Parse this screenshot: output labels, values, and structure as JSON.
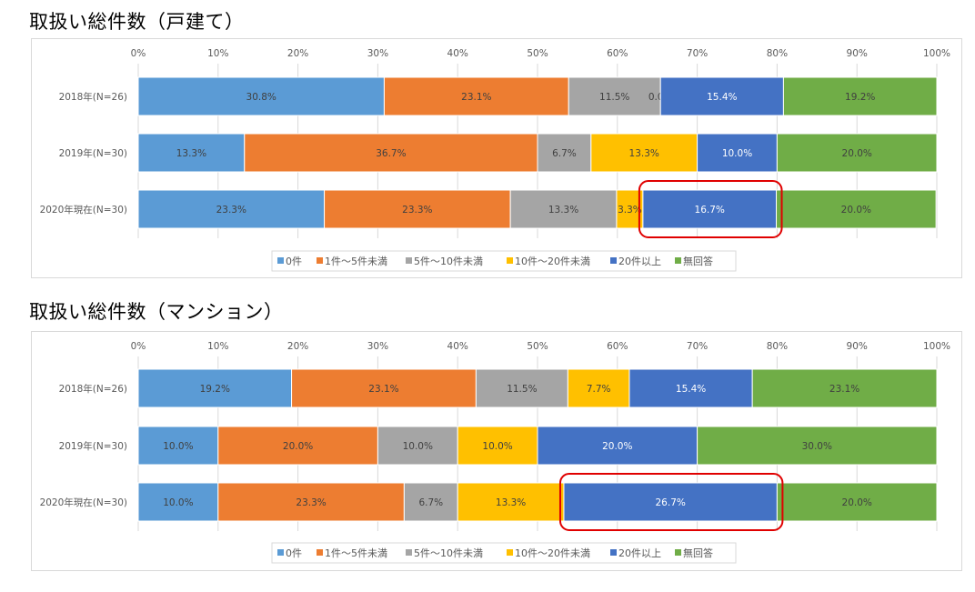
{
  "segment_label_colors": [
    "#404040",
    "#404040",
    "#404040",
    "#404040",
    "#ffffff",
    "#404040"
  ],
  "highlight": {
    "color": "#e00000"
  },
  "chart_data": [
    {
      "type": "bar",
      "orientation": "horizontal",
      "stacked": "percent",
      "title": "取扱い総件数（戸建て）",
      "categories": [
        "2018年(N=26)",
        "2019年(N=30)",
        "2020年現在(N=30)"
      ],
      "x_ticks": [
        "0%",
        "10%",
        "20%",
        "30%",
        "40%",
        "50%",
        "60%",
        "70%",
        "80%",
        "90%",
        "100%"
      ],
      "xlim": [
        0,
        100
      ],
      "legend_position": "bottom",
      "grid": true,
      "series": [
        {
          "name": "0件",
          "color": "#5b9bd5",
          "values": [
            30.8,
            13.3,
            23.3
          ],
          "labels": [
            "30.8%",
            "13.3%",
            "23.3%"
          ]
        },
        {
          "name": "1件～5件未満",
          "color": "#ed7d31",
          "values": [
            23.1,
            36.7,
            23.3
          ],
          "labels": [
            "23.1%",
            "36.7%",
            "23.3%"
          ]
        },
        {
          "name": "5件～10件未満",
          "color": "#a5a5a5",
          "values": [
            11.5,
            6.7,
            13.3
          ],
          "labels": [
            "11.5%",
            "6.7%",
            "13.3%"
          ]
        },
        {
          "name": "10件～20件未満",
          "color": "#ffc000",
          "values": [
            0.0,
            13.3,
            3.3
          ],
          "labels": [
            "0.0%",
            "13.3%",
            "3.3%"
          ]
        },
        {
          "name": "20件以上",
          "color": "#4472c4",
          "values": [
            15.4,
            10.0,
            16.7
          ],
          "labels": [
            "15.4%",
            "10.0%",
            "16.7%"
          ]
        },
        {
          "name": "無回答",
          "color": "#70ad47",
          "values": [
            19.2,
            20.0,
            20.0
          ],
          "labels": [
            "19.2%",
            "20.0%",
            "20.0%"
          ]
        }
      ],
      "highlight": {
        "category_index": 2,
        "series_index": 4
      }
    },
    {
      "type": "bar",
      "orientation": "horizontal",
      "stacked": "percent",
      "title": "取扱い総件数（マンション）",
      "categories": [
        "2018年(N=26)",
        "2019年(N=30)",
        "2020年現在(N=30)"
      ],
      "x_ticks": [
        "0%",
        "10%",
        "20%",
        "30%",
        "40%",
        "50%",
        "60%",
        "70%",
        "80%",
        "90%",
        "100%"
      ],
      "xlim": [
        0,
        100
      ],
      "legend_position": "bottom",
      "grid": true,
      "series": [
        {
          "name": "0件",
          "color": "#5b9bd5",
          "values": [
            19.2,
            10.0,
            10.0
          ],
          "labels": [
            "19.2%",
            "10.0%",
            "10.0%"
          ]
        },
        {
          "name": "1件～5件未満",
          "color": "#ed7d31",
          "values": [
            23.1,
            20.0,
            23.3
          ],
          "labels": [
            "23.1%",
            "20.0%",
            "23.3%"
          ]
        },
        {
          "name": "5件～10件未満",
          "color": "#a5a5a5",
          "values": [
            11.5,
            10.0,
            6.7
          ],
          "labels": [
            "11.5%",
            "10.0%",
            "6.7%"
          ]
        },
        {
          "name": "10件～20件未満",
          "color": "#ffc000",
          "values": [
            7.7,
            10.0,
            13.3
          ],
          "labels": [
            "7.7%",
            "10.0%",
            "13.3%"
          ]
        },
        {
          "name": "20件以上",
          "color": "#4472c4",
          "values": [
            15.4,
            20.0,
            26.7
          ],
          "labels": [
            "15.4%",
            "20.0%",
            "26.7%"
          ]
        },
        {
          "name": "無回答",
          "color": "#70ad47",
          "values": [
            23.1,
            30.0,
            20.0
          ],
          "labels": [
            "23.1%",
            "30.0%",
            "20.0%"
          ]
        }
      ],
      "highlight": {
        "category_index": 2,
        "series_index": 4
      }
    }
  ]
}
